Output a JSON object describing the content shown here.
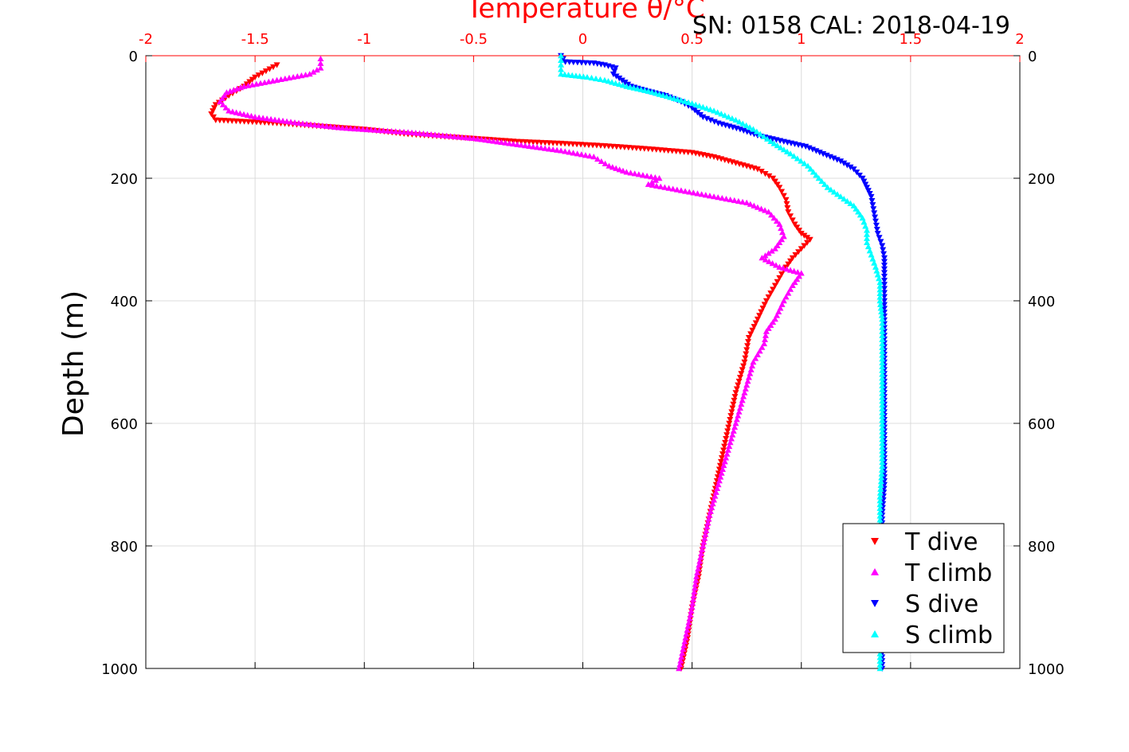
{
  "chart_data": {
    "type": "scatter",
    "title": "Temperature θ/°C",
    "subtitle": "SN: 0158  CAL: 2018-04-19",
    "xlabel": "Temperature θ/°C",
    "ylabel": "Depth (m)",
    "xlim": [
      -2,
      2
    ],
    "ylim": [
      0,
      1000
    ],
    "y_reversed": true,
    "grid": true,
    "x_axis_position": "top",
    "x_ticks": [
      "-2",
      "-1.5",
      "-1",
      "-0.5",
      "0",
      "0.5",
      "1",
      "1.5",
      "2"
    ],
    "x_tick_values": [
      -2,
      -1.5,
      -1,
      -0.5,
      0,
      0.5,
      1,
      1.5,
      2
    ],
    "y_ticks": [
      "0",
      "200",
      "400",
      "600",
      "800",
      "1000"
    ],
    "y_tick_values": [
      0,
      200,
      400,
      600,
      800,
      1000
    ],
    "legend_position": "bottom-right",
    "series": [
      {
        "name": "T dive",
        "color": "#ff0000",
        "marker": "triangle-down",
        "points": [
          [
            -1.4,
            15
          ],
          [
            -1.45,
            25
          ],
          [
            -1.5,
            35
          ],
          [
            -1.55,
            50
          ],
          [
            -1.62,
            65
          ],
          [
            -1.68,
            80
          ],
          [
            -1.7,
            95
          ],
          [
            -1.68,
            105
          ],
          [
            -1.4,
            110
          ],
          [
            -1.0,
            120
          ],
          [
            -0.8,
            128
          ],
          [
            -0.5,
            135
          ],
          [
            -0.3,
            140
          ],
          [
            -0.1,
            143
          ],
          [
            0.1,
            147
          ],
          [
            0.3,
            152
          ],
          [
            0.5,
            158
          ],
          [
            0.6,
            165
          ],
          [
            0.7,
            175
          ],
          [
            0.8,
            185
          ],
          [
            0.87,
            200
          ],
          [
            0.9,
            215
          ],
          [
            0.93,
            235
          ],
          [
            0.94,
            255
          ],
          [
            0.97,
            275
          ],
          [
            1.0,
            290
          ],
          [
            1.04,
            300
          ],
          [
            1.0,
            315
          ],
          [
            0.96,
            330
          ],
          [
            0.92,
            350
          ],
          [
            0.88,
            375
          ],
          [
            0.84,
            400
          ],
          [
            0.8,
            430
          ],
          [
            0.76,
            460
          ],
          [
            0.74,
            500
          ],
          [
            0.7,
            550
          ],
          [
            0.67,
            600
          ],
          [
            0.64,
            650
          ],
          [
            0.61,
            700
          ],
          [
            0.58,
            750
          ],
          [
            0.55,
            800
          ],
          [
            0.53,
            850
          ],
          [
            0.5,
            900
          ],
          [
            0.48,
            950
          ],
          [
            0.45,
            1000
          ]
        ]
      },
      {
        "name": "T climb",
        "color": "#ff00ff",
        "marker": "triangle-up",
        "points": [
          [
            -1.2,
            5
          ],
          [
            -1.2,
            20
          ],
          [
            -1.25,
            30
          ],
          [
            -1.4,
            40
          ],
          [
            -1.55,
            50
          ],
          [
            -1.63,
            60
          ],
          [
            -1.66,
            75
          ],
          [
            -1.62,
            90
          ],
          [
            -1.5,
            100
          ],
          [
            -1.3,
            110
          ],
          [
            -1.1,
            118
          ],
          [
            -0.8,
            125
          ],
          [
            -0.5,
            135
          ],
          [
            -0.3,
            145
          ],
          [
            -0.1,
            155
          ],
          [
            0.05,
            165
          ],
          [
            0.12,
            180
          ],
          [
            0.2,
            190
          ],
          [
            0.35,
            200
          ],
          [
            0.3,
            210
          ],
          [
            0.45,
            220
          ],
          [
            0.6,
            230
          ],
          [
            0.75,
            240
          ],
          [
            0.85,
            255
          ],
          [
            0.9,
            275
          ],
          [
            0.92,
            295
          ],
          [
            0.88,
            315
          ],
          [
            0.82,
            330
          ],
          [
            0.9,
            345
          ],
          [
            1.0,
            355
          ],
          [
            0.96,
            375
          ],
          [
            0.92,
            400
          ],
          [
            0.88,
            430
          ],
          [
            0.84,
            450
          ],
          [
            0.83,
            470
          ],
          [
            0.78,
            500
          ],
          [
            0.74,
            550
          ],
          [
            0.7,
            600
          ],
          [
            0.66,
            650
          ],
          [
            0.62,
            700
          ],
          [
            0.58,
            750
          ],
          [
            0.55,
            800
          ],
          [
            0.52,
            850
          ],
          [
            0.5,
            900
          ],
          [
            0.47,
            950
          ],
          [
            0.44,
            1000
          ]
        ]
      },
      {
        "name": "S dive",
        "color": "#0000ff",
        "marker": "triangle-down",
        "points": [
          [
            -0.1,
            0
          ],
          [
            -0.08,
            10
          ],
          [
            0.05,
            12
          ],
          [
            0.1,
            15
          ],
          [
            0.15,
            20
          ],
          [
            0.14,
            30
          ],
          [
            0.18,
            40
          ],
          [
            0.22,
            50
          ],
          [
            0.3,
            58
          ],
          [
            0.38,
            65
          ],
          [
            0.45,
            75
          ],
          [
            0.5,
            85
          ],
          [
            0.55,
            100
          ],
          [
            0.62,
            110
          ],
          [
            0.72,
            120
          ],
          [
            0.8,
            130
          ],
          [
            0.92,
            140
          ],
          [
            1.02,
            148
          ],
          [
            1.1,
            160
          ],
          [
            1.18,
            172
          ],
          [
            1.24,
            185
          ],
          [
            1.28,
            200
          ],
          [
            1.3,
            215
          ],
          [
            1.32,
            230
          ],
          [
            1.33,
            250
          ],
          [
            1.34,
            270
          ],
          [
            1.35,
            290
          ],
          [
            1.37,
            310
          ],
          [
            1.38,
            330
          ],
          [
            1.38,
            360
          ],
          [
            1.38,
            400
          ],
          [
            1.38,
            450
          ],
          [
            1.38,
            500
          ],
          [
            1.38,
            550
          ],
          [
            1.38,
            600
          ],
          [
            1.38,
            650
          ],
          [
            1.38,
            700
          ],
          [
            1.37,
            750
          ],
          [
            1.37,
            800
          ],
          [
            1.37,
            850
          ],
          [
            1.37,
            900
          ],
          [
            1.37,
            950
          ],
          [
            1.37,
            1000
          ]
        ]
      },
      {
        "name": "S climb",
        "color": "#00ffff",
        "marker": "triangle-up",
        "points": [
          [
            -0.1,
            0
          ],
          [
            -0.1,
            15
          ],
          [
            -0.1,
            30
          ],
          [
            0.02,
            35
          ],
          [
            0.1,
            40
          ],
          [
            0.2,
            50
          ],
          [
            0.3,
            58
          ],
          [
            0.4,
            68
          ],
          [
            0.5,
            78
          ],
          [
            0.6,
            90
          ],
          [
            0.7,
            105
          ],
          [
            0.78,
            120
          ],
          [
            0.86,
            140
          ],
          [
            0.95,
            160
          ],
          [
            1.03,
            180
          ],
          [
            1.08,
            200
          ],
          [
            1.12,
            215
          ],
          [
            1.18,
            230
          ],
          [
            1.24,
            245
          ],
          [
            1.28,
            265
          ],
          [
            1.3,
            285
          ],
          [
            1.3,
            305
          ],
          [
            1.32,
            325
          ],
          [
            1.34,
            345
          ],
          [
            1.36,
            370
          ],
          [
            1.36,
            400
          ],
          [
            1.37,
            430
          ],
          [
            1.37,
            470
          ],
          [
            1.37,
            520
          ],
          [
            1.37,
            570
          ],
          [
            1.37,
            620
          ],
          [
            1.37,
            670
          ],
          [
            1.36,
            720
          ],
          [
            1.36,
            770
          ],
          [
            1.36,
            820
          ],
          [
            1.36,
            870
          ],
          [
            1.36,
            920
          ],
          [
            1.36,
            970
          ],
          [
            1.36,
            1000
          ]
        ]
      }
    ]
  }
}
